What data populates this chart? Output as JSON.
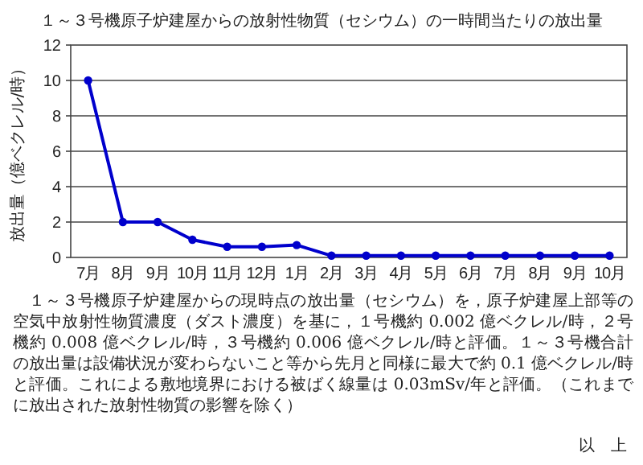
{
  "chart_data": {
    "type": "line",
    "title": "１～３号機原子炉建屋からの放射性物質（セシウム）の一時間当たりの放出量",
    "ylabel": "放出量（億ベクレル/時）",
    "categories": [
      "7月",
      "8月",
      "9月",
      "10月",
      "11月",
      "12月",
      "1月",
      "2月",
      "3月",
      "4月",
      "5月",
      "6月",
      "7月",
      "8月",
      "9月",
      "10月"
    ],
    "series": [
      {
        "color": "#0000cc",
        "values": [
          10,
          2,
          2,
          1,
          0.6,
          0.6,
          0.7,
          0.1,
          0.1,
          0.1,
          0.1,
          0.1,
          0.1,
          0.1,
          0.1,
          0.1
        ]
      }
    ],
    "ylim": [
      0,
      12
    ],
    "yticks": [
      0,
      2,
      4,
      6,
      8,
      10,
      12
    ],
    "grid": "y",
    "marker": "circle",
    "annotations": [
      "１～３号機原子炉建屋からの現時点の放出量（セシウム）を，原子炉建屋上部等の空気中放射性物質濃度（ダスト濃度）を基に，１号機約 0.002 億ベクレル/時，２号機約 0.008 億ベクレル/時，３号機約 0.006 億ベクレル/時と評価。１～３号機合計の放出量は設備状況が変わらないこと等から先月と同様に最大で約 0.1 億ベクレル/時と評価。これによる敷地境界における被ばく線量は 0.03mSv/年と評価。（これまでに放出された放射性物質の影響を除く）",
      "以　上"
    ]
  }
}
